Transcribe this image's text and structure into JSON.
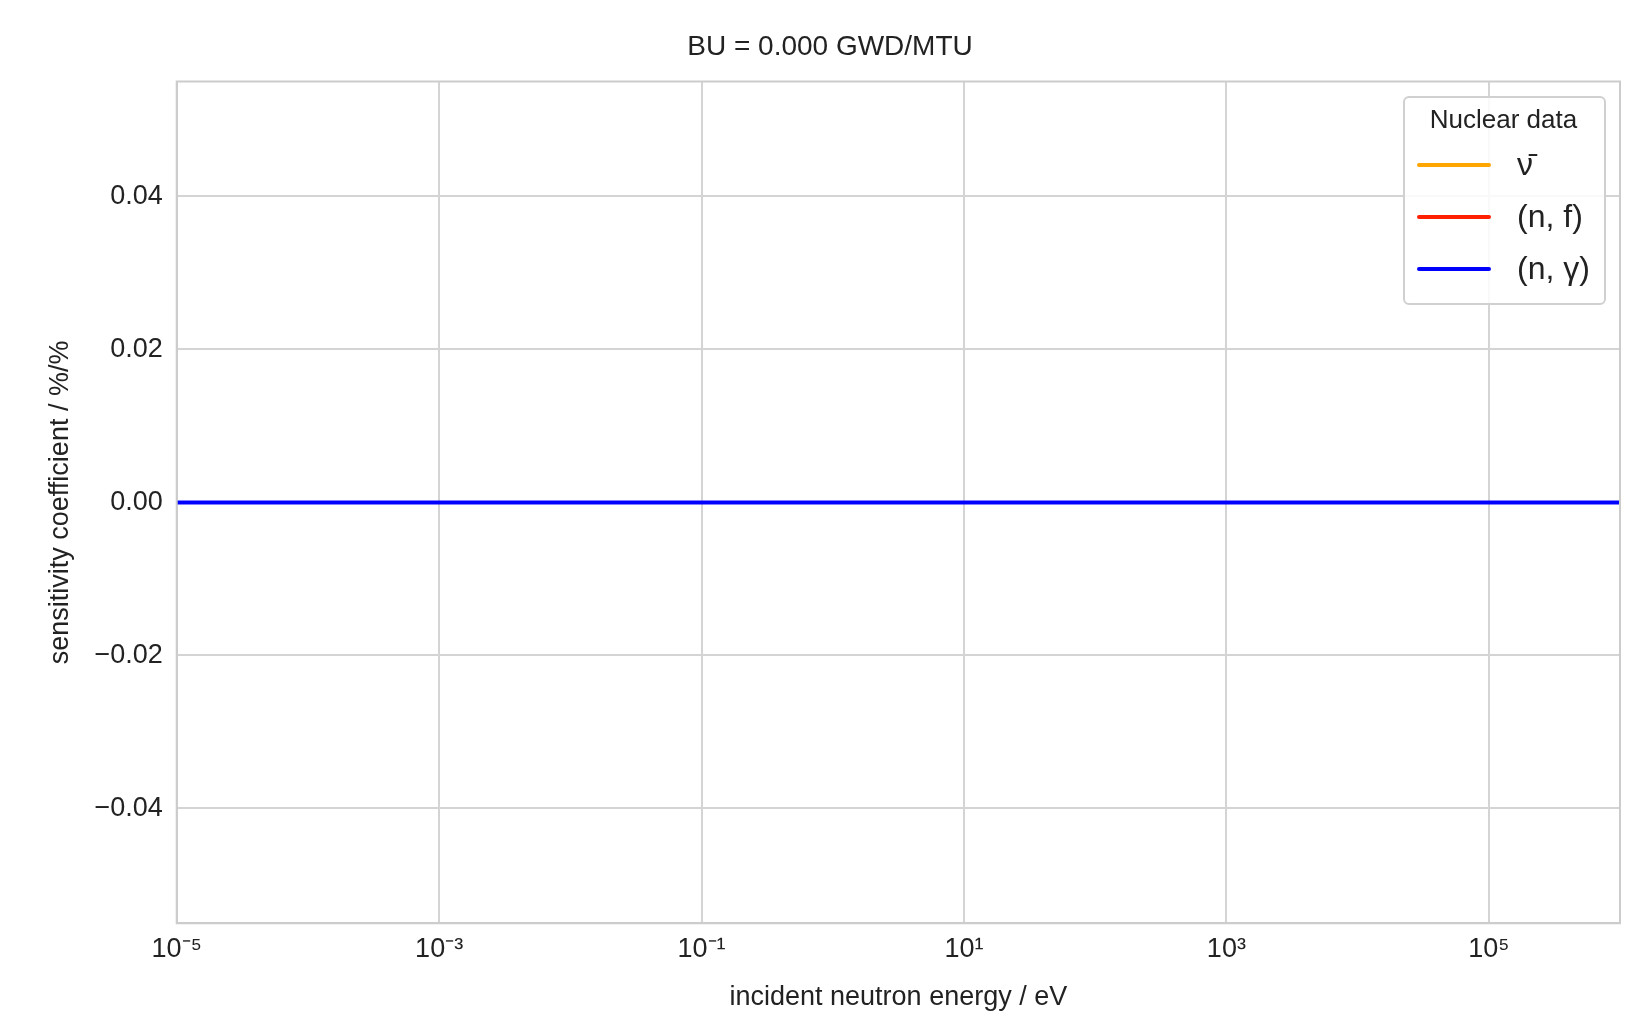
{
  "chart_data": {
    "type": "line",
    "title": "BU = 0.000 GWD/MTU",
    "xlabel": "incident neutron energy / eV",
    "ylabel": "sensitivity coefficient / %/%",
    "legend_title": "Nuclear data",
    "x": [
      1e-05,
      1000000.0
    ],
    "series": [
      {
        "name": "ν̄",
        "color": "#ffa500",
        "values": [
          null,
          null
        ]
      },
      {
        "name": "(n, f)",
        "color": "#ff2000",
        "values": [
          null,
          null
        ]
      },
      {
        "name": "(n, γ)",
        "color": "#0000ff",
        "values": [
          0,
          0
        ]
      }
    ],
    "log": "x",
    "xlim": [
      1e-05,
      1000000.0
    ],
    "ylim": [
      -0.055,
      0.055
    ],
    "xticks": [
      {
        "value": 1e-05,
        "label": "10⁻⁵"
      },
      {
        "value": 0.001,
        "label": "10⁻³"
      },
      {
        "value": 0.1,
        "label": "10⁻¹"
      },
      {
        "value": 10,
        "label": "10¹"
      },
      {
        "value": 1000,
        "label": "10³"
      },
      {
        "value": 100000,
        "label": "10⁵"
      }
    ],
    "yticks": [
      {
        "value": -0.04,
        "label": "−0.04"
      },
      {
        "value": -0.02,
        "label": "−0.02"
      },
      {
        "value": 0,
        "label": "0.00"
      },
      {
        "value": 0.02,
        "label": "0.02"
      },
      {
        "value": 0.04,
        "label": "0.04"
      }
    ],
    "grid": true,
    "legend": "top right",
    "marker": "none",
    "line_style": "solid"
  }
}
